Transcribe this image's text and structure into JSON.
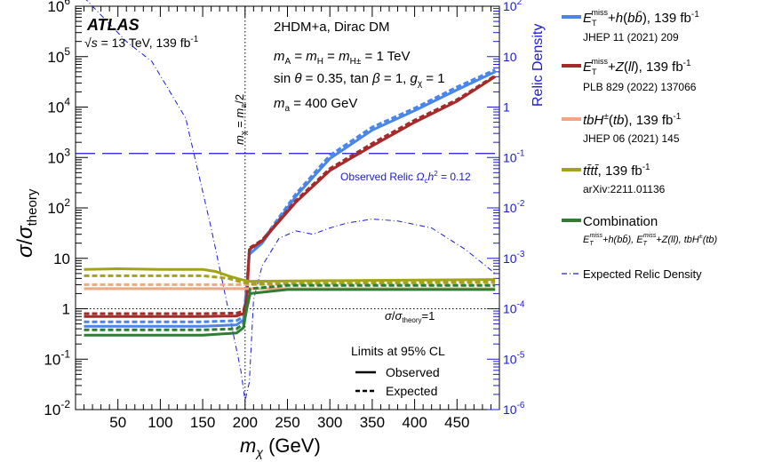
{
  "chart_data": {
    "type": "line",
    "xlabel": "m_χ (GeV)",
    "ylabel": "σ/σ_theory",
    "y2label": "Relic Density",
    "xlim": [
      0,
      500
    ],
    "ylim_log10": [
      -2,
      6
    ],
    "y2lim_log10": [
      -6,
      2
    ],
    "x_ticks": [
      "50",
      "100",
      "150",
      "200",
      "250",
      "300",
      "350",
      "400",
      "450"
    ],
    "y_ticks": [
      "10^-2",
      "10^-1",
      "1",
      "10",
      "10^2",
      "10^3",
      "10^4",
      "10^5",
      "10^6"
    ],
    "y2_ticks": [
      "10^-6",
      "10^-5",
      "10^-4",
      "10^-3",
      "10^-2",
      "10^-1",
      "1",
      "10",
      "10^2"
    ],
    "grid": false,
    "legend_position": "right outside",
    "annotations": {
      "atlas": "ATLAS",
      "energy": "√s = 13 TeV, 139 fb⁻¹",
      "model": "2HDM+a, Dirac DM",
      "masses": "m_A = m_H = m_H± = 1 TeV",
      "params": "sin θ = 0.35, tan β = 1, g_χ = 1",
      "ma": "m_a = 400 GeV",
      "vline": "m_χ = m_a/2",
      "relic": "Observed Relic Ω_c h² = 0.12",
      "unity": "σ/σ_theory=1",
      "cl_title": "Limits at 95% CL",
      "observed": "Observed",
      "expected": "Expected"
    },
    "series": [
      {
        "name": "E_T^miss+h(bb̄), 139 fb⁻¹",
        "ref": "JHEP 11 (2021) 209",
        "color": "#4a86e8",
        "observed": [
          [
            10,
            0.45
          ],
          [
            50,
            0.45
          ],
          [
            100,
            0.45
          ],
          [
            150,
            0.45
          ],
          [
            190,
            0.48
          ],
          [
            198,
            0.6
          ],
          [
            200,
            1.1
          ],
          [
            205,
            12
          ],
          [
            220,
            20
          ],
          [
            260,
            170
          ],
          [
            300,
            950
          ],
          [
            350,
            3500
          ],
          [
            400,
            8500
          ],
          [
            450,
            22000
          ],
          [
            495,
            50000
          ]
        ],
        "expected": [
          [
            10,
            0.55
          ],
          [
            50,
            0.55
          ],
          [
            100,
            0.55
          ],
          [
            150,
            0.55
          ],
          [
            190,
            0.58
          ],
          [
            198,
            0.7
          ],
          [
            200,
            1.3
          ],
          [
            205,
            14
          ],
          [
            220,
            22
          ],
          [
            260,
            190
          ],
          [
            300,
            1100
          ],
          [
            350,
            4000
          ],
          [
            400,
            9500
          ],
          [
            450,
            25000
          ],
          [
            495,
            55000
          ]
        ]
      },
      {
        "name": "E_T^miss+Z(ll), 139 fb⁻¹",
        "ref": "PLB 829 (2022) 137066",
        "color": "#a52a2a",
        "observed": [
          [
            10,
            0.7
          ],
          [
            50,
            0.7
          ],
          [
            100,
            0.7
          ],
          [
            150,
            0.7
          ],
          [
            190,
            0.72
          ],
          [
            198,
            0.8
          ],
          [
            202,
            1.5
          ],
          [
            205,
            15
          ],
          [
            220,
            22
          ],
          [
            260,
            130
          ],
          [
            300,
            550
          ],
          [
            350,
            1700
          ],
          [
            400,
            5000
          ],
          [
            450,
            13000
          ],
          [
            495,
            40000
          ]
        ],
        "expected": [
          [
            10,
            0.8
          ],
          [
            50,
            0.8
          ],
          [
            100,
            0.8
          ],
          [
            150,
            0.8
          ],
          [
            190,
            0.82
          ],
          [
            198,
            0.9
          ],
          [
            202,
            1.6
          ],
          [
            205,
            16
          ],
          [
            220,
            23
          ],
          [
            260,
            140
          ],
          [
            300,
            600
          ],
          [
            350,
            1900
          ],
          [
            400,
            5500
          ],
          [
            450,
            14000
          ],
          [
            495,
            42000
          ]
        ]
      },
      {
        "name": "tbH±(tb), 139 fb⁻¹",
        "ref": "JHEP 06 (2021) 145",
        "color": "#f4a582",
        "observed": [
          [
            10,
            2.5
          ],
          [
            195,
            2.5
          ],
          [
            205,
            2.5
          ],
          [
            495,
            2.5
          ]
        ],
        "expected": [
          [
            10,
            3.0
          ],
          [
            195,
            3.0
          ],
          [
            205,
            3.0
          ],
          [
            495,
            3.0
          ]
        ]
      },
      {
        "name": "tt̄tt̄, 139 fb⁻¹",
        "ref": "arXiv:2211.01136",
        "color": "#a3a31a",
        "observed": [
          [
            10,
            6.0
          ],
          [
            50,
            6.2
          ],
          [
            100,
            6.0
          ],
          [
            150,
            6.0
          ],
          [
            165,
            5.5
          ],
          [
            180,
            4.5
          ],
          [
            195,
            3.8
          ],
          [
            205,
            3.5
          ],
          [
            300,
            3.6
          ],
          [
            400,
            3.7
          ],
          [
            495,
            3.8
          ]
        ],
        "expected": [
          [
            10,
            4.5
          ],
          [
            100,
            4.5
          ],
          [
            150,
            4.5
          ],
          [
            180,
            4.0
          ],
          [
            195,
            3.4
          ],
          [
            205,
            3.1
          ],
          [
            300,
            3.2
          ],
          [
            400,
            3.3
          ],
          [
            495,
            3.4
          ]
        ]
      },
      {
        "name": "Combination",
        "ref": "E_T^miss+h(bb̄), E_T^miss+Z(ll), tbH±(tb)",
        "color": "#2e7d32",
        "observed": [
          [
            10,
            0.3
          ],
          [
            50,
            0.3
          ],
          [
            100,
            0.3
          ],
          [
            150,
            0.3
          ],
          [
            190,
            0.33
          ],
          [
            198,
            0.42
          ],
          [
            202,
            1.0
          ],
          [
            206,
            2.0
          ],
          [
            250,
            2.4
          ],
          [
            300,
            2.4
          ],
          [
            400,
            2.4
          ],
          [
            495,
            2.4
          ]
        ],
        "expected": [
          [
            10,
            0.38
          ],
          [
            50,
            0.38
          ],
          [
            100,
            0.38
          ],
          [
            150,
            0.38
          ],
          [
            190,
            0.4
          ],
          [
            198,
            0.5
          ],
          [
            202,
            1.1
          ],
          [
            206,
            2.5
          ],
          [
            250,
            2.9
          ],
          [
            300,
            2.9
          ],
          [
            400,
            2.9
          ],
          [
            495,
            2.9
          ]
        ]
      }
    ],
    "relic_density": {
      "name": "Expected Relic Density",
      "color": "#1a1ad6",
      "points": [
        [
          10,
          150
        ],
        [
          60,
          20
        ],
        [
          90,
          8
        ],
        [
          130,
          0.6
        ],
        [
          160,
          0.004
        ],
        [
          180,
          0.0001
        ],
        [
          195,
          6e-06
        ],
        [
          200,
          1.5e-06
        ],
        [
          205,
          3.5e-06
        ],
        [
          210,
          0.00015
        ],
        [
          220,
          0.0007
        ],
        [
          240,
          0.0025
        ],
        [
          260,
          0.0035
        ],
        [
          280,
          0.003
        ],
        [
          300,
          0.004
        ],
        [
          320,
          0.005
        ],
        [
          350,
          0.006
        ],
        [
          380,
          0.0055
        ],
        [
          420,
          0.004
        ],
        [
          460,
          0.0015
        ],
        [
          495,
          0.0005
        ]
      ]
    },
    "observed_relic_value": 0.12
  },
  "legend": [
    {
      "title": "E",
      "sub": "T",
      "sup": "miss",
      "rest": "+h(bb̄), 139 fb⁻¹",
      "ref": "JHEP 11 (2021) 209"
    },
    {
      "title": "E",
      "sub": "T",
      "sup": "miss",
      "rest": "+Z(ll), 139 fb⁻¹",
      "ref": "PLB 829 (2022) 137066"
    },
    {
      "title": "tbH±(tb), 139 fb⁻¹",
      "ref": "JHEP 06 (2021) 145"
    },
    {
      "title": "tt̄tt̄, 139 fb⁻¹",
      "ref": "arXiv:2211.01136"
    },
    {
      "title": "Combination",
      "ref": "E_T^miss+h(bb̄), E_T^miss+Z(ll), tbH±(tb)"
    },
    {
      "title": "Expected Relic Density"
    }
  ]
}
